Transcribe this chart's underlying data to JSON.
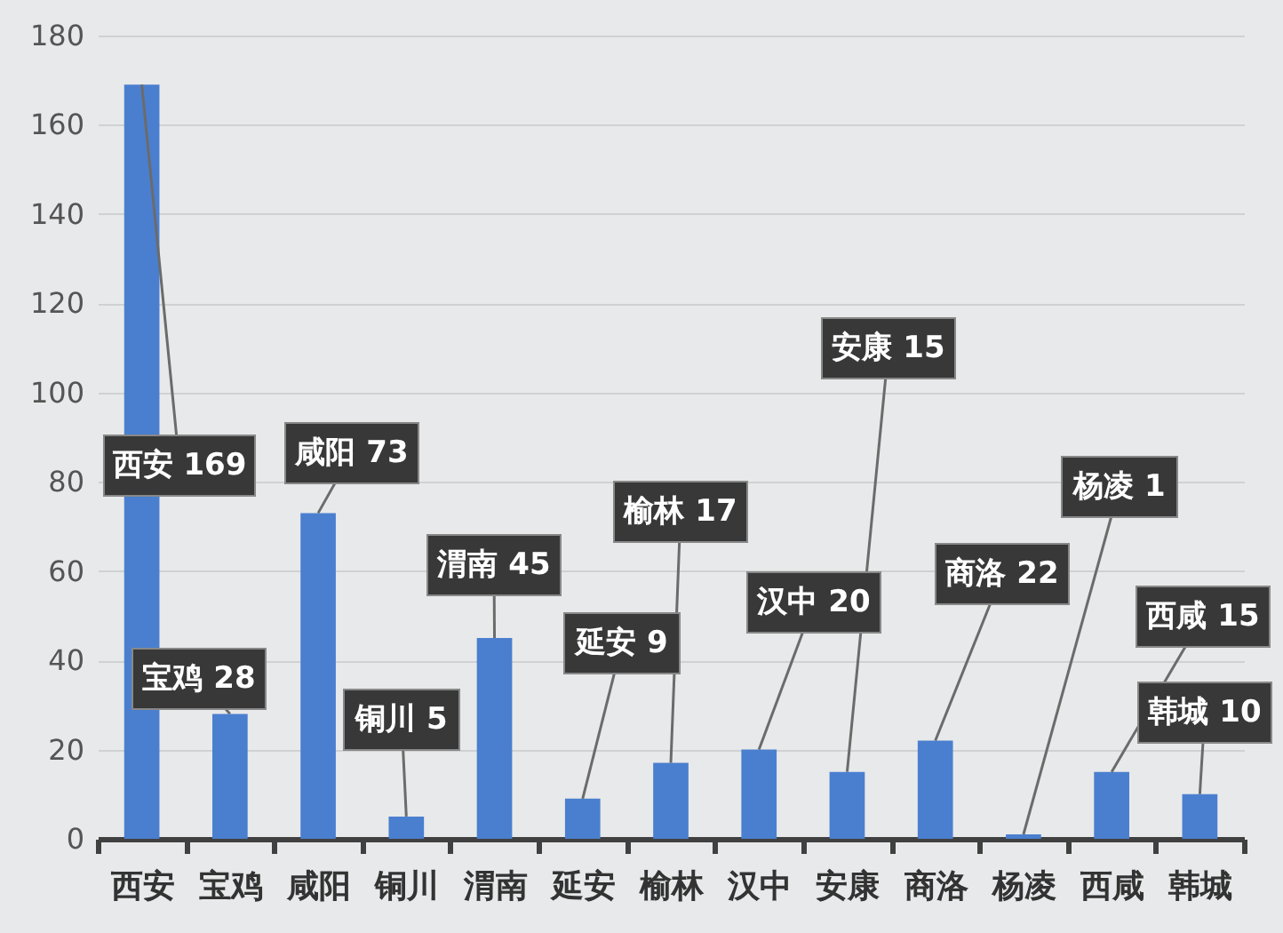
{
  "chart_data": {
    "type": "bar",
    "categories": [
      "西安",
      "宝鸡",
      "咸阳",
      "铜川",
      "渭南",
      "延安",
      "榆林",
      "汉中",
      "安康",
      "商洛",
      "杨凌",
      "西咸",
      "韩城"
    ],
    "values": [
      169,
      28,
      73,
      5,
      45,
      9,
      17,
      20,
      15,
      22,
      1,
      15,
      10
    ],
    "value_labels": [
      "西安 169",
      "宝鸡 28",
      "咸阳 73",
      "铜川 5",
      "渭南 45",
      "延安 9",
      "榆林 17",
      "汉中 20",
      "安康 15",
      "商洛 22",
      "杨凌 1",
      "西咸 15",
      "韩城 10"
    ],
    "color": "#4a7fcf",
    "ylim": [
      0,
      180
    ],
    "yticks": [
      0,
      20,
      40,
      60,
      80,
      100,
      120,
      140,
      160,
      180
    ],
    "grid": "y"
  }
}
